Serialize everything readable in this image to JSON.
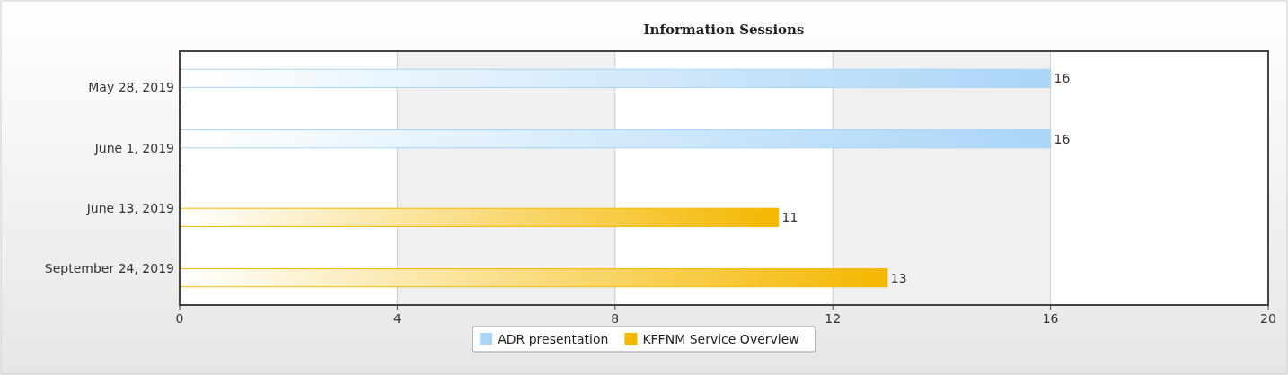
{
  "chart_data": {
    "type": "bar",
    "title": "Information Sessions",
    "orientation": "horizontal",
    "categories": [
      "May 28, 2019",
      "June 1, 2019",
      "June 13, 2019",
      "September 24, 2019"
    ],
    "series": [
      {
        "name": "ADR presentation",
        "color": "#a9d5f7",
        "values": [
          16,
          16,
          0,
          0
        ],
        "value_labels": [
          "16",
          "16",
          null,
          null
        ]
      },
      {
        "name": "KFFNM Service Overview",
        "color": "#f4b800",
        "values": [
          0,
          0,
          11,
          13
        ],
        "value_labels": [
          null,
          null,
          "11",
          "13"
        ]
      }
    ],
    "xlim": [
      0,
      20
    ],
    "xticks": [
      0,
      4,
      8,
      12,
      16,
      20
    ],
    "grid": "x",
    "legend": "bottom"
  }
}
